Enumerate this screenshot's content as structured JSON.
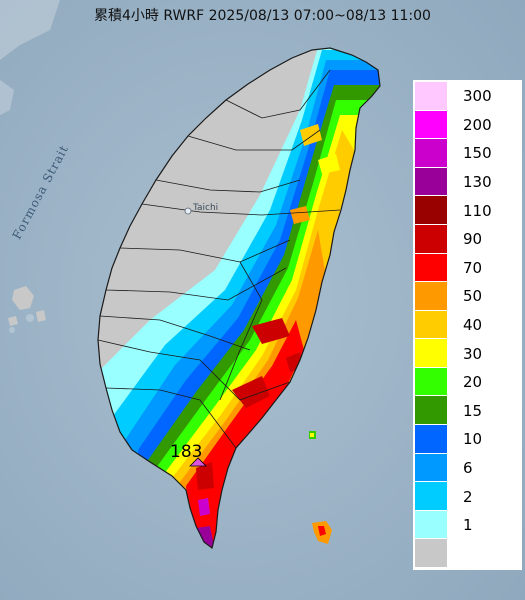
{
  "title": "累積4小時 RWRF 2025/08/13 07:00~08/13 11:00",
  "map_labels": {
    "strait": "Formosa Strait",
    "city": "Taichi",
    "peak_value": "183"
  },
  "legend": [
    {
      "label": "300",
      "color": "#ffc8ff"
    },
    {
      "label": "200",
      "color": "#ff00ff"
    },
    {
      "label": "150",
      "color": "#cc00cc"
    },
    {
      "label": "130",
      "color": "#990099"
    },
    {
      "label": "110",
      "color": "#990000"
    },
    {
      "label": "90",
      "color": "#cc0000"
    },
    {
      "label": "70",
      "color": "#ff0000"
    },
    {
      "label": "50",
      "color": "#ff9900"
    },
    {
      "label": "40",
      "color": "#ffcc00"
    },
    {
      "label": "30",
      "color": "#ffff00"
    },
    {
      "label": "20",
      "color": "#33ff00"
    },
    {
      "label": "15",
      "color": "#339900"
    },
    {
      "label": "10",
      "color": "#0066ff"
    },
    {
      "label": "6",
      "color": "#0099ff"
    },
    {
      "label": "2",
      "color": "#00ccff"
    },
    {
      "label": "1",
      "color": "#99ffff"
    },
    {
      "label": "",
      "color": "#c8c8c8"
    }
  ],
  "colors": {
    "sea": "#9fb6c8",
    "land_dry": "#c8c8c8"
  }
}
